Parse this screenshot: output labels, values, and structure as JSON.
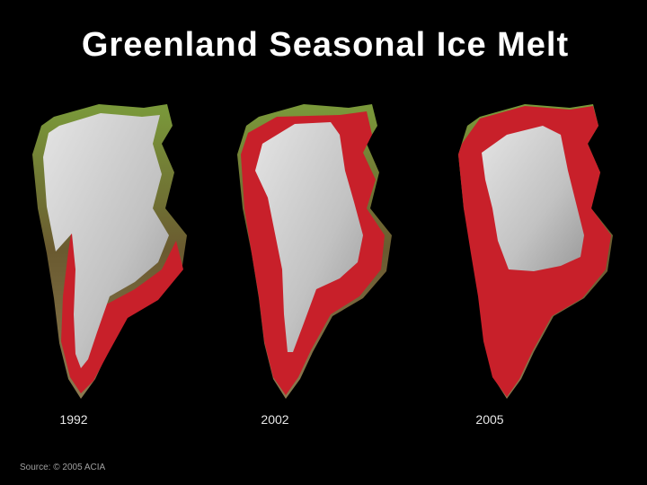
{
  "title": "Greenland Seasonal Ice Melt",
  "panels": [
    {
      "label": "1992"
    },
    {
      "label": "2002"
    },
    {
      "label": "2005"
    }
  ],
  "source": "Source: © 2005 ACIA"
}
